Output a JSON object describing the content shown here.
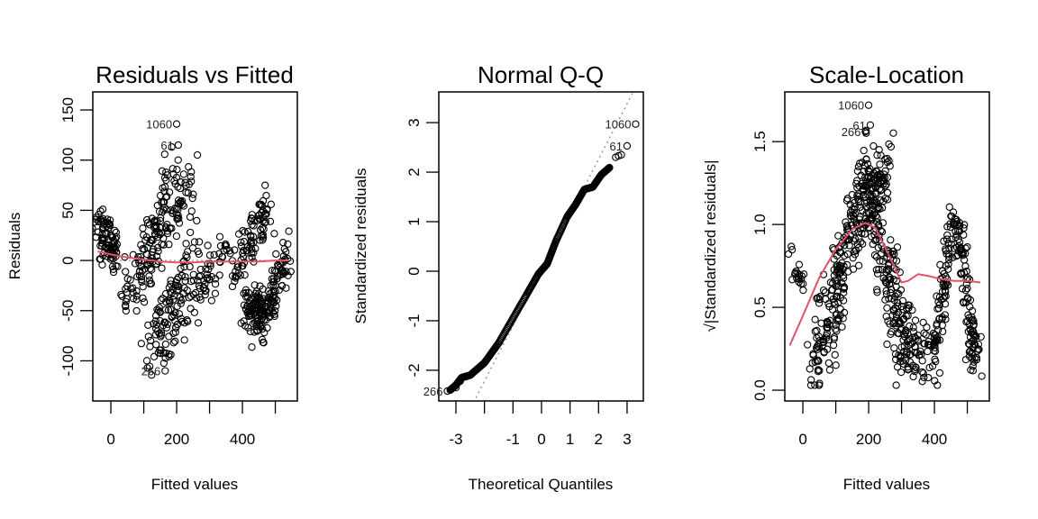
{
  "chart_data": [
    {
      "type": "scatter",
      "title": "Residuals vs Fitted",
      "xlabel": "Fitted values",
      "ylabel": "Residuals",
      "xlim": [
        -55,
        567
      ],
      "ylim": [
        -140,
        168
      ],
      "xticks": [
        0,
        100,
        200,
        300,
        400,
        500
      ],
      "xtick_labels": [
        "0",
        "",
        "200",
        "",
        "400",
        ""
      ],
      "yticks": [
        -100,
        -50,
        0,
        50,
        100,
        150
      ],
      "ytick_labels": [
        "-100",
        "-50",
        "0",
        "50",
        "100",
        "150"
      ],
      "reference_line": {
        "type": "horizontal",
        "y": 0,
        "style": "dotted",
        "color": "#aaaaaa"
      },
      "smoother": {
        "color": "#df536b",
        "x": [
          -40,
          0,
          50,
          100,
          150,
          200,
          250,
          300,
          350,
          400,
          450,
          500,
          540
        ],
        "y": [
          9,
          6,
          3,
          1,
          -1,
          -2,
          -2,
          -1,
          -1,
          -1,
          -1,
          0,
          0
        ]
      },
      "point_clusters": [
        {
          "desc": "left decreasing arm",
          "x0": -40,
          "y0": 35,
          "x1": 20,
          "y1": 5
        },
        {
          "desc": "upper band A",
          "x0": 40,
          "y0": -40,
          "x1": 200,
          "y1": 100
        },
        {
          "desc": "upper band B",
          "x0": 80,
          "y0": -30,
          "x1": 250,
          "y1": 80
        },
        {
          "desc": "lower band A",
          "x0": 100,
          "y0": -100,
          "x1": 260,
          "y1": 20
        },
        {
          "desc": "lower band B",
          "x0": 150,
          "y0": -90,
          "x1": 350,
          "y1": 10
        },
        {
          "desc": "right rising arm",
          "x0": 370,
          "y0": -10,
          "x1": 480,
          "y1": 55
        },
        {
          "desc": "right falling arm",
          "x0": 410,
          "y0": -45,
          "x1": 460,
          "y1": -55
        },
        {
          "desc": "right rising arm 2",
          "x0": 460,
          "y0": -55,
          "x1": 540,
          "y1": 5
        }
      ],
      "labeled_points": [
        {
          "label": "1060",
          "x": 200,
          "y": 136
        },
        {
          "label": "61",
          "x": 205,
          "y": 115
        },
        {
          "label": "266",
          "x": 165,
          "y": -110
        }
      ]
    },
    {
      "type": "scatter",
      "title": "Normal Q-Q",
      "xlabel": "Theoretical Quantiles",
      "ylabel": "Standardized residuals",
      "xlim": [
        -3.6,
        3.57
      ],
      "ylim": [
        -2.62,
        3.62
      ],
      "xticks": [
        -3,
        -2,
        -1,
        0,
        1,
        2,
        3
      ],
      "xtick_labels": [
        "-3",
        "",
        "-1",
        "0",
        "1",
        "2",
        "3"
      ],
      "yticks": [
        -2,
        -1,
        0,
        1,
        2,
        3
      ],
      "ytick_labels": [
        "-2",
        "-1",
        "0",
        "1",
        "2",
        "3"
      ],
      "reference_line": {
        "type": "qq",
        "slope": 1.12,
        "intercept": 0.02,
        "style": "dotted",
        "color": "#999999"
      },
      "qq_curve": {
        "x": [
          -3.2,
          -3.0,
          -2.8,
          -2.5,
          -2.0,
          -1.5,
          -1.0,
          -0.5,
          -0.1,
          0.2,
          0.5,
          0.9,
          1.2,
          1.5,
          1.8,
          2.1,
          2.4
        ],
        "y": [
          -2.4,
          -2.3,
          -2.15,
          -2.1,
          -1.85,
          -1.45,
          -0.95,
          -0.45,
          -0.05,
          0.15,
          0.6,
          1.1,
          1.35,
          1.65,
          1.7,
          1.95,
          2.1
        ]
      },
      "labeled_points": [
        {
          "label": "1060",
          "x": 3.3,
          "y": 2.97
        },
        {
          "label": "61",
          "x": 3.0,
          "y": 2.53
        },
        {
          "label": "266",
          "x": -3.3,
          "y": -2.42
        }
      ],
      "extra_points": [
        {
          "x": 2.7,
          "y": 2.33
        },
        {
          "x": 2.8,
          "y": 2.35
        },
        {
          "x": 2.6,
          "y": 2.3
        },
        {
          "x": -3.0,
          "y": -2.35
        },
        {
          "x": -2.85,
          "y": -2.22
        }
      ]
    },
    {
      "type": "scatter",
      "title": "Scale-Location",
      "xlabel": "Fitted values",
      "ylabel": "√|Standardized residuals|",
      "xlim": [
        -55,
        567
      ],
      "ylim": [
        -0.065,
        1.8
      ],
      "xticks": [
        0,
        100,
        200,
        300,
        400,
        500
      ],
      "xtick_labels": [
        "0",
        "",
        "200",
        "",
        "400",
        ""
      ],
      "yticks": [
        0.0,
        0.5,
        1.0,
        1.5
      ],
      "ytick_labels": [
        "0.0",
        "0.5",
        "1.0",
        "1.5"
      ],
      "smoother": {
        "color": "#df536b",
        "x": [
          -40,
          0,
          50,
          100,
          150,
          190,
          220,
          260,
          300,
          320,
          350,
          380,
          420,
          460,
          500,
          540
        ],
        "y": [
          0.27,
          0.45,
          0.68,
          0.85,
          0.97,
          1.01,
          0.98,
          0.82,
          0.65,
          0.66,
          0.7,
          0.69,
          0.67,
          0.66,
          0.66,
          0.65
        ]
      },
      "labeled_points": [
        {
          "label": "1060",
          "x": 200,
          "y": 1.72
        },
        {
          "label": "61",
          "x": 205,
          "y": 1.6
        },
        {
          "label": "266",
          "x": 190,
          "y": 1.56
        }
      ]
    }
  ]
}
